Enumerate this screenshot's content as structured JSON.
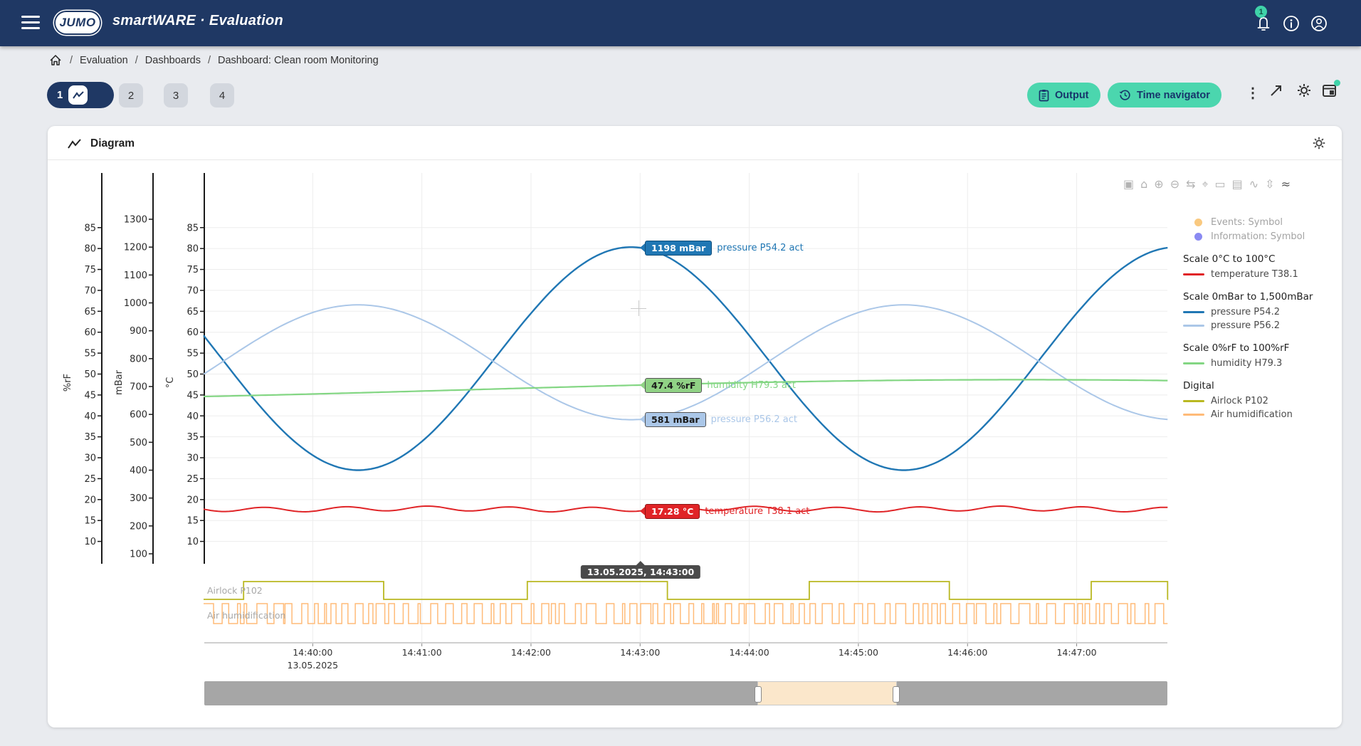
{
  "topbar": {
    "logo": "JUMO",
    "title": "smartWARE · Evaluation",
    "notification_count": "1"
  },
  "breadcrumb": {
    "separator": "/",
    "items": [
      "Evaluation",
      "Dashboards",
      "Dashboard: Clean room Monitoring"
    ]
  },
  "tabs": [
    {
      "label": "1",
      "active": true
    },
    {
      "label": "2",
      "active": false
    },
    {
      "label": "3",
      "active": false
    },
    {
      "label": "4",
      "active": false
    }
  ],
  "toolbar": {
    "output_label": "Output",
    "time_navigator_label": "Time navigator"
  },
  "panel": {
    "title": "Diagram"
  },
  "colors": {
    "topbar": "#1f3864",
    "accent_teal": "#4bd6ae",
    "page_bg": "#e9ebef"
  },
  "modebar": {
    "icons": [
      {
        "name": "camera",
        "glyph": "▣"
      },
      {
        "name": "home",
        "glyph": "⌂"
      },
      {
        "name": "zoom-in",
        "glyph": "⊕"
      },
      {
        "name": "zoom-out",
        "glyph": "⊖"
      },
      {
        "name": "pan",
        "glyph": "⇆"
      },
      {
        "name": "select",
        "glyph": "⌖"
      },
      {
        "name": "hover-closest",
        "glyph": "▭"
      },
      {
        "name": "hover-compare",
        "glyph": "▤"
      },
      {
        "name": "spikelines",
        "glyph": "∿"
      },
      {
        "name": "autoscale",
        "glyph": "⇳"
      },
      {
        "name": "stacked-view",
        "glyph": "≈"
      }
    ]
  },
  "chart_data": {
    "type": "line",
    "x_date": "13.05.2025",
    "x_start_time": "14:39:00",
    "duration_s": 530,
    "x_ticks": [
      "14:40:00",
      "14:41:00",
      "14:42:00",
      "14:43:00",
      "14:44:00",
      "14:45:00",
      "14:46:00",
      "14:47:00"
    ],
    "axes": [
      {
        "id": "rf",
        "title": "%rF",
        "range": [
          0,
          100
        ],
        "ticks": [
          85,
          80,
          75,
          70,
          65,
          60,
          55,
          50,
          45,
          40,
          35,
          30,
          25,
          20,
          15,
          10
        ]
      },
      {
        "id": "mbar",
        "title": "mBar",
        "range": [
          0,
          1500
        ],
        "ticks": [
          1300,
          1200,
          1100,
          1000,
          900,
          800,
          700,
          600,
          500,
          400,
          300,
          200,
          100
        ]
      },
      {
        "id": "celsius",
        "title": "°C",
        "range": [
          0,
          100
        ],
        "ticks": [
          85,
          80,
          75,
          70,
          65,
          60,
          55,
          50,
          45,
          40,
          35,
          30,
          25,
          20,
          15,
          10
        ]
      }
    ],
    "series": [
      {
        "name": "temperature T38.1",
        "axis": "celsius",
        "color": "#e02427",
        "width": 2,
        "model": {
          "base": 17.75,
          "waves": [
            {
              "amp": 0.55,
              "period_s": 45,
              "phase_s": 247
            },
            {
              "amp": 0.15,
              "period_s": 160,
              "phase_s": 240
            }
          ]
        },
        "cursor_label": "17.28 °C",
        "badge_bg": "#e02427",
        "badge_fg": "#ffffff",
        "badge_border": "#8b1313"
      },
      {
        "name": "pressure P54.2",
        "axis": "mbar",
        "color": "#2077b4",
        "width": 2.4,
        "model": {
          "base": 800,
          "waves": [
            {
              "amp": 400,
              "period_s": 300,
              "phase_s": 235,
              "cos": true
            }
          ]
        },
        "cursor_label": "1198 mBar",
        "badge_bg": "#2077b4",
        "badge_fg": "#ffffff",
        "badge_border": "#0f4d7a"
      },
      {
        "name": "pressure P56.2",
        "axis": "mbar",
        "color": "#abc7e8",
        "width": 2,
        "model": {
          "base": 787,
          "waves": [
            {
              "amp": -206,
              "period_s": 300,
              "phase_s": 235,
              "cos": true
            }
          ]
        },
        "cursor_label": "581 mBar",
        "badge_bg": "#abc7e8",
        "badge_fg": "#1a1a1a",
        "badge_border": "#555555"
      },
      {
        "name": "humidity H79.3",
        "axis": "rf",
        "color": "#83d683",
        "width": 2.2,
        "model": {
          "base": 46.3,
          "waves": [
            {
              "amp": 2.35,
              "period_s": 1200,
              "phase_s": 150
            }
          ]
        },
        "cursor_label": "47.4 %rF",
        "badge_bg": "#90d285",
        "badge_fg": "#1a1a1a",
        "badge_border": "#555555"
      }
    ],
    "digital": [
      {
        "name": "Airlock P102",
        "color": "#b9b821",
        "high_intervals_s": [
          [
            22,
            99
          ],
          [
            178,
            255
          ],
          [
            333,
            410
          ],
          [
            488,
            530
          ]
        ]
      },
      {
        "name": "Air humidification",
        "color": "#ffbb78",
        "pattern": "pseudo-random",
        "seed": 29,
        "min_pulse_s": 0.8,
        "max_pulse_s": 6
      }
    ],
    "cursor": {
      "time_s": 240,
      "label": "13.05.2025, 14:43:00",
      "suffix": "act"
    },
    "legend": {
      "symbols": [
        {
          "label": "Events: Symbol",
          "color": "#f9c980"
        },
        {
          "label": "Information: Symbol",
          "color": "#8a8af2"
        }
      ],
      "groups": [
        {
          "title": "Scale 0°C to 100°C",
          "items": [
            {
              "label": "temperature T38.1",
              "color": "#e02427"
            }
          ]
        },
        {
          "title": "Scale 0mBar to 1,500mBar",
          "items": [
            {
              "label": "pressure P54.2",
              "color": "#2077b4"
            },
            {
              "label": "pressure P56.2",
              "color": "#abc7e8"
            }
          ]
        },
        {
          "title": "Scale 0%rF to 100%rF",
          "items": [
            {
              "label": "humidity H79.3",
              "color": "#83d683"
            }
          ]
        },
        {
          "title": "Digital",
          "items": [
            {
              "label": "Airlock P102",
              "color": "#b9b821"
            },
            {
              "label": "Air humidification",
              "color": "#ffbb78"
            }
          ]
        }
      ],
      "position": "right"
    },
    "rangeslider": {
      "window_start_ratio": 0.574,
      "window_end_ratio": 0.719
    }
  }
}
